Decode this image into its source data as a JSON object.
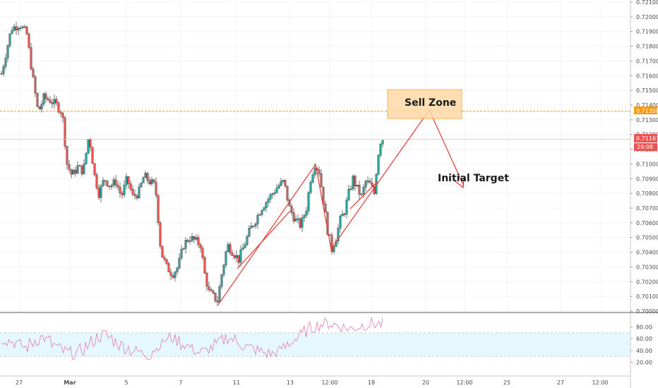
{
  "chart_data": {
    "type": "candlestick",
    "instrument_timeframe": "1H",
    "price_axis": {
      "range": [
        0.7,
        0.721
      ],
      "ticks": [
        "0.72100",
        "0.72000",
        "0.71900",
        "0.71800",
        "0.71700",
        "0.71600",
        "0.71500",
        "0.71400",
        "0.71300",
        "0.71200",
        "0.71100",
        "0.71000",
        "0.70900",
        "0.70800",
        "0.70700",
        "0.70600",
        "0.70500",
        "0.70400",
        "0.70300",
        "0.70200",
        "0.70100",
        "0.70000"
      ]
    },
    "time_axis": {
      "labels": [
        "27",
        "Mar",
        "5",
        "7",
        "11",
        "13",
        "12:00",
        "18",
        "20",
        "12:00",
        "25",
        "27",
        "12:00"
      ]
    },
    "series_anchor": [
      [
        0,
        0.7157
      ],
      [
        6,
        0.717
      ],
      [
        16,
        0.7192
      ],
      [
        28,
        0.7195
      ],
      [
        38,
        0.7188
      ],
      [
        46,
        0.716
      ],
      [
        54,
        0.7135
      ],
      [
        62,
        0.7145
      ],
      [
        72,
        0.7143
      ],
      [
        80,
        0.714
      ],
      [
        88,
        0.7135
      ],
      [
        95,
        0.71
      ],
      [
        102,
        0.7092
      ],
      [
        110,
        0.7098
      ],
      [
        118,
        0.7095
      ],
      [
        126,
        0.712
      ],
      [
        134,
        0.7092
      ],
      [
        140,
        0.708
      ],
      [
        148,
        0.709
      ],
      [
        156,
        0.7085
      ],
      [
        164,
        0.7088
      ],
      [
        172,
        0.7078
      ],
      [
        180,
        0.709
      ],
      [
        188,
        0.7078
      ],
      [
        196,
        0.708
      ],
      [
        204,
        0.7092
      ],
      [
        212,
        0.7088
      ],
      [
        220,
        0.7085
      ],
      [
        228,
        0.704
      ],
      [
        236,
        0.703
      ],
      [
        244,
        0.7025
      ],
      [
        252,
        0.703
      ],
      [
        260,
        0.7045
      ],
      [
        268,
        0.705
      ],
      [
        276,
        0.7048
      ],
      [
        284,
        0.7045
      ],
      [
        290,
        0.7025
      ],
      [
        296,
        0.7013
      ],
      [
        302,
        0.701
      ],
      [
        308,
        0.7007
      ],
      [
        314,
        0.7025
      ],
      [
        322,
        0.7045
      ],
      [
        330,
        0.704
      ],
      [
        338,
        0.7035
      ],
      [
        346,
        0.7045
      ],
      [
        354,
        0.7055
      ],
      [
        362,
        0.7062
      ],
      [
        370,
        0.707
      ],
      [
        378,
        0.7075
      ],
      [
        386,
        0.708
      ],
      [
        394,
        0.7085
      ],
      [
        402,
        0.7088
      ],
      [
        410,
        0.707
      ],
      [
        418,
        0.7062
      ],
      [
        426,
        0.7058
      ],
      [
        434,
        0.707
      ],
      [
        440,
        0.709
      ],
      [
        446,
        0.71
      ],
      [
        452,
        0.7095
      ],
      [
        458,
        0.7075
      ],
      [
        464,
        0.7055
      ],
      [
        470,
        0.7042
      ],
      [
        476,
        0.705
      ],
      [
        482,
        0.7062
      ],
      [
        488,
        0.7068
      ],
      [
        494,
        0.708
      ],
      [
        500,
        0.709
      ],
      [
        506,
        0.7083
      ],
      [
        512,
        0.7078
      ],
      [
        518,
        0.7088
      ],
      [
        524,
        0.7086
      ],
      [
        530,
        0.708
      ],
      [
        534,
        0.71
      ],
      [
        538,
        0.7115
      ],
      [
        542,
        0.7117
      ]
    ],
    "price_lines": [
      {
        "label": "0.71358",
        "value": 0.71358,
        "color": "#ff9800"
      },
      {
        "label": "0.71167",
        "value": 0.71167,
        "color": "#ef5350"
      }
    ],
    "countdown": "29:08",
    "annotations": {
      "sell_zone_label": "Sell Zone",
      "target_label": "Initial Target"
    },
    "oscillator": {
      "range": [
        0,
        100
      ],
      "ticks": [
        "80.00",
        "60.00",
        "40.00",
        "20.00"
      ],
      "band": [
        30,
        70
      ],
      "series": [
        60,
        57,
        54,
        49,
        45,
        52,
        58,
        62,
        57,
        49,
        43,
        38,
        36,
        34,
        41,
        48,
        56,
        63,
        67,
        62,
        55,
        49,
        45,
        40,
        38,
        35,
        33,
        42,
        50,
        58,
        62,
        57,
        51,
        47,
        41,
        37,
        38,
        44,
        50,
        57,
        62,
        59,
        53,
        48,
        44,
        41,
        38,
        35,
        34,
        38,
        45,
        52,
        59,
        66,
        73,
        79,
        83,
        85,
        86,
        84,
        82,
        79,
        77,
        80,
        83,
        85,
        86,
        85,
        85
      ]
    }
  },
  "colors": {
    "up": "#26a69a",
    "down": "#ef5350",
    "pattern_line": "#e53935",
    "sell_zone_fill": "#ffd9a8",
    "oscillator_line": "#e07ab0",
    "oscillator_band": "#e6f8ff"
  }
}
